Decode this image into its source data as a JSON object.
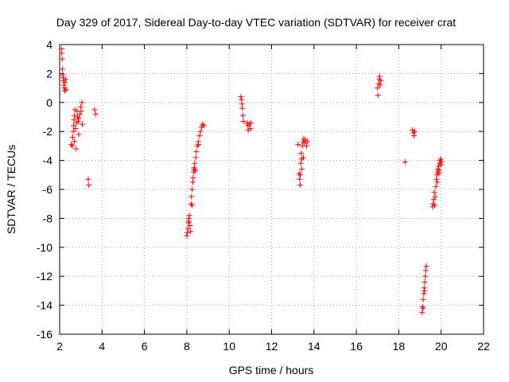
{
  "chart_data": {
    "type": "scatter",
    "title": "Day 329 of 2017, Sidereal Day-to-day VTEC variation (SDTVAR) for receiver crat",
    "xlabel": "GPS time / hours",
    "ylabel": "SDTVAR / TECUs",
    "xlim": [
      2,
      22
    ],
    "ylim": [
      -16,
      4
    ],
    "xticks": [
      2,
      4,
      6,
      8,
      10,
      12,
      14,
      16,
      18,
      20,
      22
    ],
    "yticks": [
      -16,
      -14,
      -12,
      -10,
      -8,
      -6,
      -4,
      -2,
      0,
      2,
      4
    ],
    "xtick_labels": [
      "2",
      "4",
      "6",
      "8",
      "10",
      "12",
      "14",
      "16",
      "18",
      "20",
      "22"
    ],
    "ytick_labels": [
      "-16",
      "-14",
      "-12",
      "-10",
      "-8",
      "-6",
      "-4",
      "-2",
      "0",
      "2",
      "4"
    ],
    "grid": true,
    "marker": "+",
    "marker_color": "#ff0000",
    "series": [
      {
        "name": "SDTVAR",
        "color": "#ff0000",
        "points": [
          [
            2.1,
            3.7
          ],
          [
            2.1,
            3.4
          ],
          [
            2.12,
            3.0
          ],
          [
            2.13,
            2.3
          ],
          [
            2.15,
            1.9
          ],
          [
            2.17,
            1.7
          ],
          [
            2.18,
            1.5
          ],
          [
            2.2,
            1.2
          ],
          [
            2.22,
            1.0
          ],
          [
            2.25,
            0.8
          ],
          [
            2.28,
            1.6
          ],
          [
            2.3,
            0.9
          ],
          [
            2.26,
            1.4
          ],
          [
            2.55,
            -2.9
          ],
          [
            2.6,
            -3.0
          ],
          [
            2.62,
            -2.4
          ],
          [
            2.65,
            -2.0
          ],
          [
            2.66,
            -1.6
          ],
          [
            2.68,
            -1.2
          ],
          [
            2.7,
            -0.9
          ],
          [
            2.72,
            -0.5
          ],
          [
            2.75,
            -1.8
          ],
          [
            2.78,
            -3.2
          ],
          [
            2.8,
            -1.4
          ],
          [
            2.82,
            -0.6
          ],
          [
            2.85,
            -1.0
          ],
          [
            2.88,
            -1.3
          ],
          [
            2.9,
            -1.1
          ],
          [
            2.95,
            -0.8
          ],
          [
            3.0,
            -0.3
          ],
          [
            3.02,
            -0.6
          ],
          [
            3.05,
            0.0
          ],
          [
            3.07,
            -1.5
          ],
          [
            2.9,
            -2.2
          ],
          [
            2.7,
            -2.7
          ],
          [
            3.35,
            -5.3
          ],
          [
            3.38,
            -5.7
          ],
          [
            3.65,
            -0.5
          ],
          [
            3.7,
            -0.8
          ],
          [
            8.0,
            -9.2
          ],
          [
            8.02,
            -9.0
          ],
          [
            8.05,
            -8.7
          ],
          [
            8.08,
            -8.3
          ],
          [
            8.1,
            -8.0
          ],
          [
            8.12,
            -7.8
          ],
          [
            8.15,
            -8.5
          ],
          [
            8.18,
            -8.9
          ],
          [
            8.2,
            -7.0
          ],
          [
            8.22,
            -6.5
          ],
          [
            8.25,
            -6.0
          ],
          [
            8.28,
            -5.5
          ],
          [
            8.3,
            -5.2
          ],
          [
            8.33,
            -4.8
          ],
          [
            8.35,
            -4.5
          ],
          [
            8.38,
            -4.2
          ],
          [
            8.4,
            -4.7
          ],
          [
            8.42,
            -3.8
          ],
          [
            8.45,
            -3.4
          ],
          [
            8.5,
            -3.0
          ],
          [
            8.55,
            -2.7
          ],
          [
            8.6,
            -2.3
          ],
          [
            8.65,
            -2.0
          ],
          [
            8.7,
            -1.7
          ],
          [
            8.75,
            -1.5
          ],
          [
            8.8,
            -1.6
          ],
          [
            8.25,
            -7.1
          ],
          [
            8.35,
            -4.6
          ],
          [
            8.55,
            -2.9
          ],
          [
            8.1,
            -8.2
          ],
          [
            10.55,
            0.4
          ],
          [
            10.58,
            0.2
          ],
          [
            10.6,
            -0.1
          ],
          [
            10.62,
            -0.4
          ],
          [
            10.65,
            -0.9
          ],
          [
            10.67,
            -1.3
          ],
          [
            10.85,
            -1.4
          ],
          [
            10.88,
            -1.6
          ],
          [
            10.9,
            -1.9
          ],
          [
            10.95,
            -1.5
          ],
          [
            11.0,
            -1.8
          ],
          [
            11.02,
            -1.4
          ],
          [
            13.25,
            -2.9
          ],
          [
            13.3,
            -4.9
          ],
          [
            13.32,
            -5.3
          ],
          [
            13.35,
            -5.7
          ],
          [
            13.38,
            -4.2
          ],
          [
            13.4,
            -3.5
          ],
          [
            13.42,
            -4.6
          ],
          [
            13.45,
            -3.0
          ],
          [
            13.48,
            -2.7
          ],
          [
            13.5,
            -3.8
          ],
          [
            13.52,
            -2.5
          ],
          [
            13.55,
            -2.8
          ],
          [
            13.6,
            -2.6
          ],
          [
            13.65,
            -3.0
          ],
          [
            13.7,
            -2.7
          ],
          [
            13.35,
            -5.0
          ],
          [
            13.42,
            -3.9
          ],
          [
            17.0,
            1.0
          ],
          [
            17.02,
            0.5
          ],
          [
            17.05,
            1.3
          ],
          [
            17.08,
            1.6
          ],
          [
            17.1,
            1.8
          ],
          [
            17.12,
            1.2
          ],
          [
            17.15,
            1.5
          ],
          [
            18.3,
            -4.1
          ],
          [
            18.65,
            -1.9
          ],
          [
            18.7,
            -2.1
          ],
          [
            18.72,
            -2.3
          ],
          [
            18.75,
            -2.0
          ],
          [
            19.1,
            -14.5
          ],
          [
            19.12,
            -14.1
          ],
          [
            19.15,
            -13.6
          ],
          [
            19.18,
            -13.2
          ],
          [
            19.2,
            -12.8
          ],
          [
            19.23,
            -12.4
          ],
          [
            19.25,
            -12.0
          ],
          [
            19.28,
            -11.6
          ],
          [
            19.3,
            -11.3
          ],
          [
            19.15,
            -14.2
          ],
          [
            19.22,
            -13.0
          ],
          [
            19.6,
            -7.2
          ],
          [
            19.62,
            -7.0
          ],
          [
            19.65,
            -6.7
          ],
          [
            19.68,
            -6.2
          ],
          [
            19.7,
            -7.1
          ],
          [
            19.72,
            -6.5
          ],
          [
            19.75,
            -5.8
          ],
          [
            19.78,
            -5.3
          ],
          [
            19.8,
            -5.0
          ],
          [
            19.83,
            -4.8
          ],
          [
            19.85,
            -4.6
          ],
          [
            19.88,
            -4.4
          ],
          [
            19.9,
            -4.9
          ],
          [
            19.93,
            -4.2
          ],
          [
            19.95,
            -4.0
          ],
          [
            19.98,
            -3.9
          ],
          [
            20.0,
            -4.3
          ],
          [
            20.02,
            -4.1
          ],
          [
            19.82,
            -5.5
          ],
          [
            19.9,
            -4.7
          ]
        ]
      }
    ]
  }
}
